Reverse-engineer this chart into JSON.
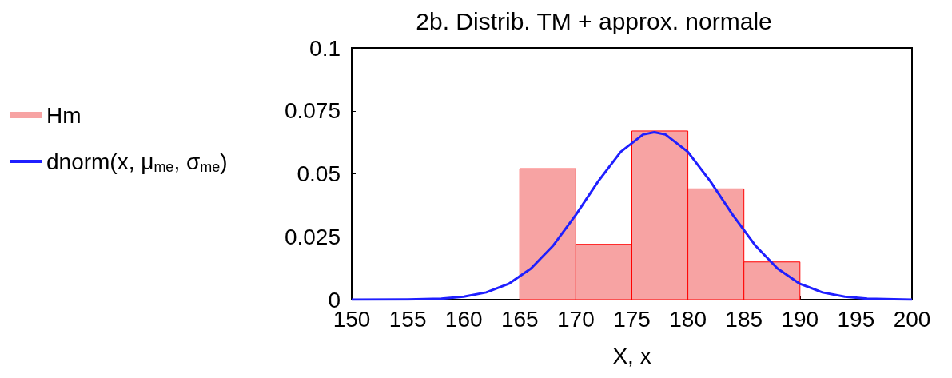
{
  "chart_data": {
    "type": "histogram",
    "title": "2b. Distrib. TM + approx. normale",
    "xlabel": "X, x",
    "bins": [
      165,
      170,
      175,
      180,
      185,
      190
    ],
    "series": [
      {
        "name": "Hm",
        "color": "#f7a3a3",
        "values": [
          0.052,
          0.022,
          0.067,
          0.044,
          0.015
        ]
      },
      {
        "name": "dnorm(x, μ$_{me}$, σ$_{me}$)",
        "type": "line",
        "color": "#1f1fff",
        "x": [
          150,
          155,
          158,
          160,
          162,
          164,
          166,
          168,
          170,
          172,
          174,
          176,
          177,
          178,
          180,
          182,
          184,
          186,
          188,
          190,
          192,
          194,
          196,
          200
        ],
        "values": [
          0,
          0.0001,
          0.0004,
          0.0012,
          0.0029,
          0.0063,
          0.0124,
          0.0216,
          0.0337,
          0.047,
          0.0587,
          0.0656,
          0.0665,
          0.0656,
          0.0587,
          0.047,
          0.0337,
          0.0216,
          0.0124,
          0.0063,
          0.0029,
          0.0012,
          0.0004,
          0
        ]
      }
    ],
    "xlim": [
      150,
      200
    ],
    "xticks": [
      150,
      155,
      160,
      165,
      170,
      175,
      180,
      185,
      190,
      195,
      200
    ],
    "ylim": [
      0,
      0.1
    ],
    "yticks": [
      0,
      0.025,
      0.05,
      0.075,
      0.1
    ],
    "legend": "left",
    "grid": false
  }
}
